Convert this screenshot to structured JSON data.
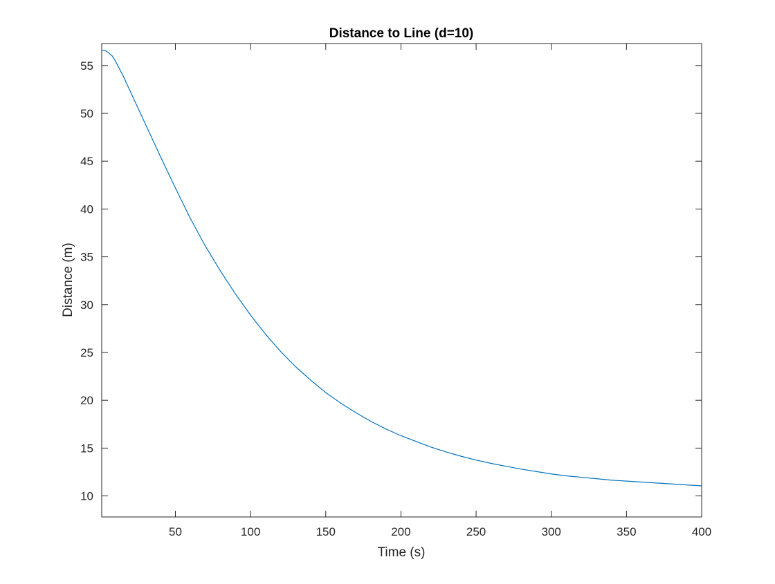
{
  "chart_data": {
    "type": "line",
    "title": "Distance to Line (d=10)",
    "xlabel": "Time (s)",
    "ylabel": "Distance (m)",
    "xlim": [
      1,
      400
    ],
    "ylim": [
      7.8,
      57.3
    ],
    "xticks": [
      50,
      100,
      150,
      200,
      250,
      300,
      350,
      400
    ],
    "yticks": [
      10,
      15,
      20,
      25,
      30,
      35,
      40,
      45,
      50,
      55
    ],
    "grid": false,
    "legend": "none",
    "line_color": "#0072BD",
    "series": [
      {
        "x": [
          1,
          3,
          5,
          8,
          10,
          15,
          20,
          25,
          30,
          40,
          50,
          60,
          70,
          80,
          90,
          100,
          110,
          120,
          130,
          140,
          150,
          160,
          170,
          180,
          190,
          200,
          210,
          220,
          230,
          240,
          250,
          260,
          270,
          280,
          290,
          300,
          310,
          320,
          330,
          340,
          350,
          360,
          370,
          380,
          390,
          400
        ],
        "y": [
          56.6,
          56.6,
          56.4,
          56.0,
          55.5,
          54.0,
          52.3,
          50.6,
          48.9,
          45.5,
          42.2,
          39.0,
          36.1,
          33.5,
          31.1,
          28.9,
          26.9,
          25.1,
          23.5,
          22.1,
          20.8,
          19.7,
          18.7,
          17.8,
          17.0,
          16.3,
          15.7,
          15.1,
          14.6,
          14.15,
          13.75,
          13.4,
          13.1,
          12.8,
          12.55,
          12.3,
          12.1,
          11.95,
          11.8,
          11.65,
          11.55,
          11.45,
          11.35,
          11.25,
          11.15,
          11.05
        ]
      }
    ]
  }
}
